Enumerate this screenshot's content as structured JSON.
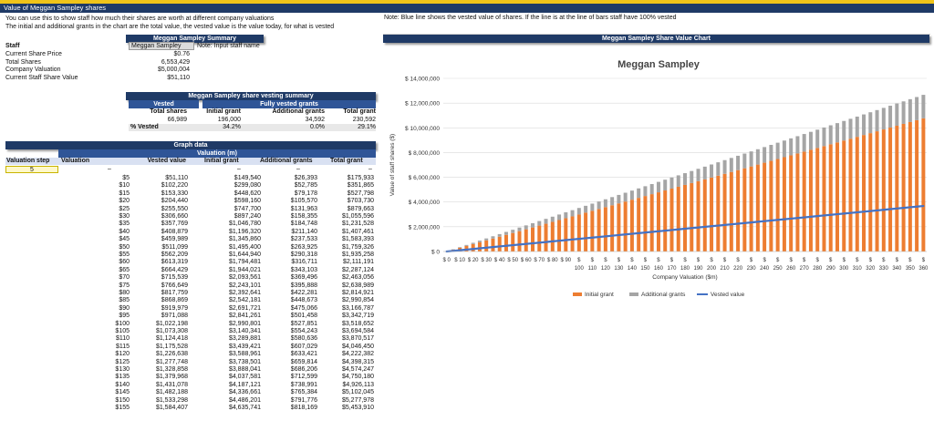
{
  "sheet_title": "Value of Meggan Sampley shares",
  "intro_lines": [
    "You can use this to show staff how much their shares are worth at different company valuations",
    "The initial and additional grants in the chart are the total value, the vested value is the value today, for what is vested"
  ],
  "note": "Note: Blue line shows the vested value of shares. If the line is at the line of bars staff have 100% vested",
  "summary": {
    "title": "Meggan Sampley Summary",
    "staff_label": "Staff",
    "staff_value": "Meggan Sampley",
    "staff_note": "Note: Input staff name",
    "rows": [
      {
        "label": "Current Share Price",
        "value": "$0.76"
      },
      {
        "label": "Total Shares",
        "value": "6,553,429"
      },
      {
        "label": "Company Valuation",
        "value": "$5,000,004"
      },
      {
        "label": "Current Staff Share Value",
        "value": "$51,110"
      }
    ]
  },
  "vesting": {
    "title": "Meggan Sampley share vesting summary",
    "group_vested": "Vested",
    "group_fully": "Fully vested grants",
    "col_total_shares": "Total shares",
    "col_initial": "Initial grant",
    "col_additional": "Additional grants",
    "col_total": "Total grant",
    "vals": {
      "total_shares": "66,989",
      "initial": "196,000",
      "additional": "34,592",
      "total": "230,592"
    },
    "pct_label": "% Vested",
    "pct": {
      "initial": "34.2%",
      "additional": "0.0%",
      "total": "29.1%"
    }
  },
  "graph_data": {
    "title": "Graph data",
    "subtitle": "Valuation (m)",
    "headers": [
      "Valuation step",
      "Valuation",
      "Vested value",
      "Initial grant",
      "Additional grants",
      "Total grant"
    ],
    "step_value": "5",
    "dash": "–",
    "rows": [
      [
        "$5",
        "$51,110",
        "$149,540",
        "$26,393",
        "$175,933"
      ],
      [
        "$10",
        "$102,220",
        "$299,080",
        "$52,785",
        "$351,865"
      ],
      [
        "$15",
        "$153,330",
        "$448,620",
        "$79,178",
        "$527,798"
      ],
      [
        "$20",
        "$204,440",
        "$598,160",
        "$105,570",
        "$703,730"
      ],
      [
        "$25",
        "$255,550",
        "$747,700",
        "$131,963",
        "$879,663"
      ],
      [
        "$30",
        "$306,660",
        "$897,240",
        "$158,355",
        "$1,055,596"
      ],
      [
        "$35",
        "$357,769",
        "$1,046,780",
        "$184,748",
        "$1,231,528"
      ],
      [
        "$40",
        "$408,879",
        "$1,196,320",
        "$211,140",
        "$1,407,461"
      ],
      [
        "$45",
        "$459,989",
        "$1,345,860",
        "$237,533",
        "$1,583,393"
      ],
      [
        "$50",
        "$511,099",
        "$1,495,400",
        "$263,925",
        "$1,759,326"
      ],
      [
        "$55",
        "$562,209",
        "$1,644,940",
        "$290,318",
        "$1,935,258"
      ],
      [
        "$60",
        "$613,319",
        "$1,794,481",
        "$316,711",
        "$2,111,191"
      ],
      [
        "$65",
        "$664,429",
        "$1,944,021",
        "$343,103",
        "$2,287,124"
      ],
      [
        "$70",
        "$715,539",
        "$2,093,561",
        "$369,496",
        "$2,463,056"
      ],
      [
        "$75",
        "$766,649",
        "$2,243,101",
        "$395,888",
        "$2,638,989"
      ],
      [
        "$80",
        "$817,759",
        "$2,392,641",
        "$422,281",
        "$2,814,921"
      ],
      [
        "$85",
        "$868,869",
        "$2,542,181",
        "$448,673",
        "$2,990,854"
      ],
      [
        "$90",
        "$919,979",
        "$2,691,721",
        "$475,066",
        "$3,166,787"
      ],
      [
        "$95",
        "$971,088",
        "$2,841,261",
        "$501,458",
        "$3,342,719"
      ],
      [
        "$100",
        "$1,022,198",
        "$2,990,801",
        "$527,851",
        "$3,518,652"
      ],
      [
        "$105",
        "$1,073,308",
        "$3,140,341",
        "$554,243",
        "$3,694,584"
      ],
      [
        "$110",
        "$1,124,418",
        "$3,289,881",
        "$580,636",
        "$3,870,517"
      ],
      [
        "$115",
        "$1,175,528",
        "$3,439,421",
        "$607,029",
        "$4,046,450"
      ],
      [
        "$120",
        "$1,226,638",
        "$3,588,961",
        "$633,421",
        "$4,222,382"
      ],
      [
        "$125",
        "$1,277,748",
        "$3,738,501",
        "$659,814",
        "$4,398,315"
      ],
      [
        "$130",
        "$1,328,858",
        "$3,888,041",
        "$686,206",
        "$4,574,247"
      ],
      [
        "$135",
        "$1,379,968",
        "$4,037,581",
        "$712,599",
        "$4,750,180"
      ],
      [
        "$140",
        "$1,431,078",
        "$4,187,121",
        "$738,991",
        "$4,926,113"
      ],
      [
        "$145",
        "$1,482,188",
        "$4,336,661",
        "$765,384",
        "$5,102,045"
      ],
      [
        "$150",
        "$1,533,298",
        "$4,486,201",
        "$791,776",
        "$5,277,978"
      ],
      [
        "$155",
        "$1,584,407",
        "$4,635,741",
        "$818,169",
        "$5,453,910"
      ]
    ]
  },
  "chart_panel_title": "Meggan Sampley Share Value Chart",
  "chart_data": {
    "type": "bar",
    "title": "Meggan Sampley",
    "ylabel": "Value of staff shares ($)",
    "xlabel": "Company Valuation ($m)",
    "ylim": [
      0,
      14000000
    ],
    "yticks": [
      "$ 14,000,000",
      "$ 12,000,000",
      "$ 10,000,000",
      "$ 8,000,000",
      "$ 6,000,000",
      "$ 4,000,000",
      "$ 2,000,000",
      "$ 0"
    ],
    "xticks_small": [
      "$ 0",
      "$ 10",
      "$ 20",
      "$ 30",
      "$ 40",
      "$ 50",
      "$ 60",
      "$ 70",
      "$ 80",
      "$ 90"
    ],
    "xticks_large": [
      "100",
      "110",
      "120",
      "130",
      "140",
      "150",
      "160",
      "170",
      "180",
      "190",
      "200",
      "210",
      "220",
      "230",
      "240",
      "250",
      "260",
      "270",
      "280",
      "290",
      "300",
      "310",
      "320",
      "330",
      "340",
      "350",
      "360"
    ],
    "x_start": 0,
    "x_step": 5,
    "x_count": 73,
    "initial_per_m": 29908,
    "additional_per_m": 5278.5,
    "vested_per_m": 10222,
    "colors": {
      "initial": "#ed7d31",
      "additional": "#a5a5a5",
      "vested": "#4472c4"
    },
    "legend": [
      "Initial grant",
      "Additional grants",
      "Vested value"
    ],
    "legend_position": "bottom",
    "grid": true
  }
}
